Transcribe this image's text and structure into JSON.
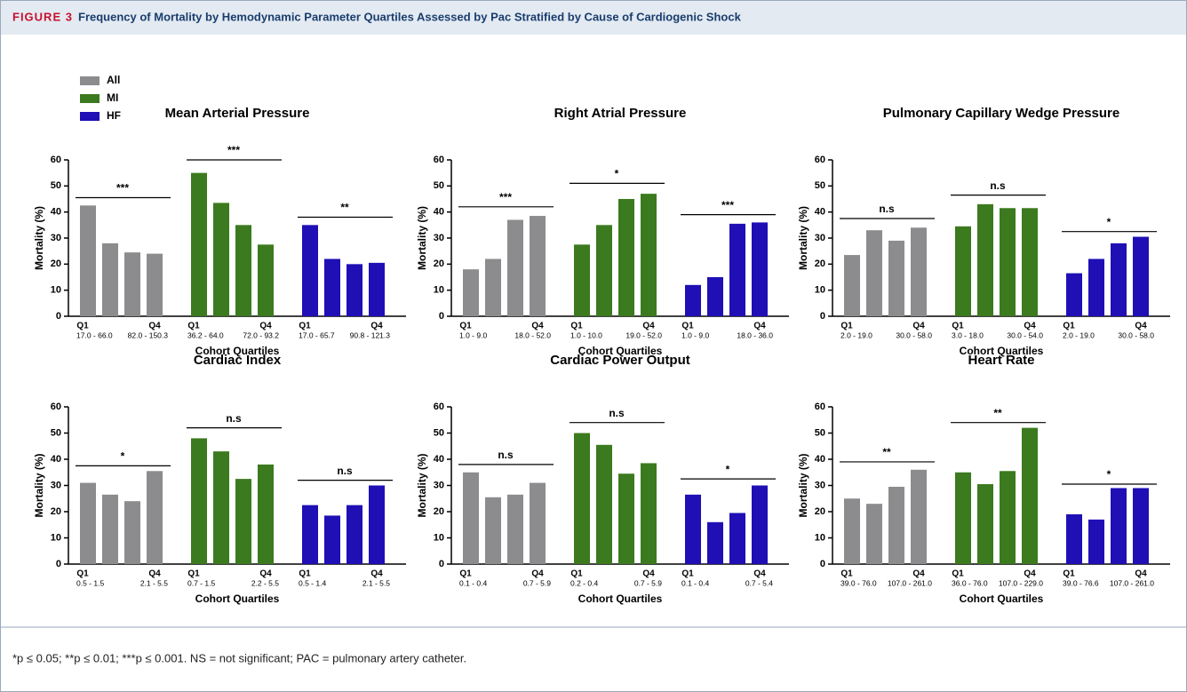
{
  "figure": {
    "label": "FIGURE 3",
    "title": "Frequency of Mortality by Hemodynamic Parameter Quartiles Assessed by Pac Stratified by Cause of Cardiogenic Shock",
    "footnote": "*p ≤ 0.05; **p ≤ 0.01; ***p ≤ 0.001. NS = not significant; PAC = pulmonary artery catheter."
  },
  "legend": [
    {
      "name": "All",
      "color": "#8c8c8e"
    },
    {
      "name": "MI",
      "color": "#3b7a1e"
    },
    {
      "name": "HF",
      "color": "#1f0fb5"
    }
  ],
  "chart_data": [
    {
      "type": "bar",
      "title": "Mean Arterial Pressure",
      "ylabel": "Mortality (%)",
      "xlabel": "Cohort Quartiles",
      "ylim": [
        0,
        60
      ],
      "yticks": [
        0,
        10,
        20,
        30,
        40,
        50,
        60
      ],
      "q1": "Q1",
      "q4": "Q4",
      "groups": [
        {
          "values": [
            42.5,
            28,
            24.5,
            24
          ],
          "q1_range": "17.0 - 66.0",
          "q4_range": "82.0 - 150.3",
          "significance": "***",
          "sig_level": 45.5
        },
        {
          "values": [
            55,
            43.5,
            35,
            27.5
          ],
          "q1_range": "36.2 - 64.0",
          "q4_range": "72.0 - 93.2",
          "significance": "***",
          "sig_level": 60
        },
        {
          "values": [
            35,
            22,
            20,
            20.5
          ],
          "q1_range": "17.0 - 65.7",
          "q4_range": "90.8 - 121.3",
          "significance": "**",
          "sig_level": 38
        }
      ]
    },
    {
      "type": "bar",
      "title": "Right Atrial Pressure",
      "ylabel": "Mortality (%)",
      "xlabel": "Cohort Quartiles",
      "ylim": [
        0,
        60
      ],
      "yticks": [
        0,
        10,
        20,
        30,
        40,
        50,
        60
      ],
      "q1": "Q1",
      "q4": "Q4",
      "groups": [
        {
          "values": [
            18,
            22,
            37,
            38.5
          ],
          "q1_range": "1.0 - 9.0",
          "q4_range": "18.0 - 52.0",
          "significance": "***",
          "sig_level": 42
        },
        {
          "values": [
            27.5,
            35,
            45,
            47
          ],
          "q1_range": "1.0 - 10.0",
          "q4_range": "19.0 - 52.0",
          "significance": "*",
          "sig_level": 51
        },
        {
          "values": [
            12,
            15,
            35.5,
            36
          ],
          "q1_range": "1.0 - 9.0",
          "q4_range": "18.0 - 36.0",
          "significance": "***",
          "sig_level": 39
        }
      ]
    },
    {
      "type": "bar",
      "title": "Pulmonary Capillary Wedge Pressure",
      "ylabel": "Mortality (%)",
      "xlabel": "Cohort Quartiles",
      "ylim": [
        0,
        60
      ],
      "yticks": [
        0,
        10,
        20,
        30,
        40,
        50,
        60
      ],
      "q1": "Q1",
      "q4": "Q4",
      "groups": [
        {
          "values": [
            23.5,
            33,
            29,
            34
          ],
          "q1_range": "2.0 - 19.0",
          "q4_range": "30.0 - 58.0",
          "significance": "n.s",
          "sig_level": 37.5
        },
        {
          "values": [
            34.5,
            43,
            41.5,
            41.5
          ],
          "q1_range": "3.0 - 18.0",
          "q4_range": "30.0 - 54.0",
          "significance": "n.s",
          "sig_level": 46.5
        },
        {
          "values": [
            16.5,
            22,
            28,
            30.5
          ],
          "q1_range": "2.0 - 19.0",
          "q4_range": "30.0 - 58.0",
          "significance": "*",
          "sig_level": 32.5
        }
      ]
    },
    {
      "type": "bar",
      "title": "Cardiac Index",
      "ylabel": "Mortality (%)",
      "xlabel": "Cohort Quartiles",
      "ylim": [
        0,
        60
      ],
      "yticks": [
        0,
        10,
        20,
        30,
        40,
        50,
        60
      ],
      "q1": "Q1",
      "q4": "Q4",
      "groups": [
        {
          "values": [
            31,
            26.5,
            24,
            35.5
          ],
          "q1_range": "0.5 - 1.5",
          "q4_range": "2.1 - 5.5",
          "significance": "*",
          "sig_level": 37.5
        },
        {
          "values": [
            48,
            43,
            32.5,
            38
          ],
          "q1_range": "0.7 - 1.5",
          "q4_range": "2.2 - 5.5",
          "significance": "n.s",
          "sig_level": 52
        },
        {
          "values": [
            22.5,
            18.5,
            22.5,
            30
          ],
          "q1_range": "0.5 - 1.4",
          "q4_range": "2.1 - 5.5",
          "significance": "n.s",
          "sig_level": 32
        }
      ]
    },
    {
      "type": "bar",
      "title": "Cardiac Power Output",
      "ylabel": "Mortality (%)",
      "xlabel": "Cohort Quartiles",
      "ylim": [
        0,
        60
      ],
      "yticks": [
        0,
        10,
        20,
        30,
        40,
        50,
        60
      ],
      "q1": "Q1",
      "q4": "Q4",
      "groups": [
        {
          "values": [
            35,
            25.5,
            26.5,
            31
          ],
          "q1_range": "0.1 - 0.4",
          "q4_range": "0.7 - 5.9",
          "significance": "n.s",
          "sig_level": 38
        },
        {
          "values": [
            50,
            45.5,
            34.5,
            38.5
          ],
          "q1_range": "0.2 - 0.4",
          "q4_range": "0.7 - 5.9",
          "significance": "n.s",
          "sig_level": 54
        },
        {
          "values": [
            26.5,
            16,
            19.5,
            30
          ],
          "q1_range": "0.1 - 0.4",
          "q4_range": "0.7 - 5.4",
          "significance": "*",
          "sig_level": 32.5
        }
      ]
    },
    {
      "type": "bar",
      "title": "Heart Rate",
      "ylabel": "Mortality (%)",
      "xlabel": "Cohort Quartiles",
      "ylim": [
        0,
        60
      ],
      "yticks": [
        0,
        10,
        20,
        30,
        40,
        50,
        60
      ],
      "q1": "Q1",
      "q4": "Q4",
      "groups": [
        {
          "values": [
            25,
            23,
            29.5,
            36
          ],
          "q1_range": "39.0 - 76.0",
          "q4_range": "107.0 - 261.0",
          "significance": "**",
          "sig_level": 39
        },
        {
          "values": [
            35,
            30.5,
            35.5,
            52
          ],
          "q1_range": "36.0 - 76.0",
          "q4_range": "107.0 - 229.0",
          "significance": "**",
          "sig_level": 54
        },
        {
          "values": [
            19,
            17,
            29,
            29
          ],
          "q1_range": "39.0 - 76.6",
          "q4_range": "107.0 - 261.0",
          "significance": "*",
          "sig_level": 30.5
        }
      ]
    }
  ]
}
